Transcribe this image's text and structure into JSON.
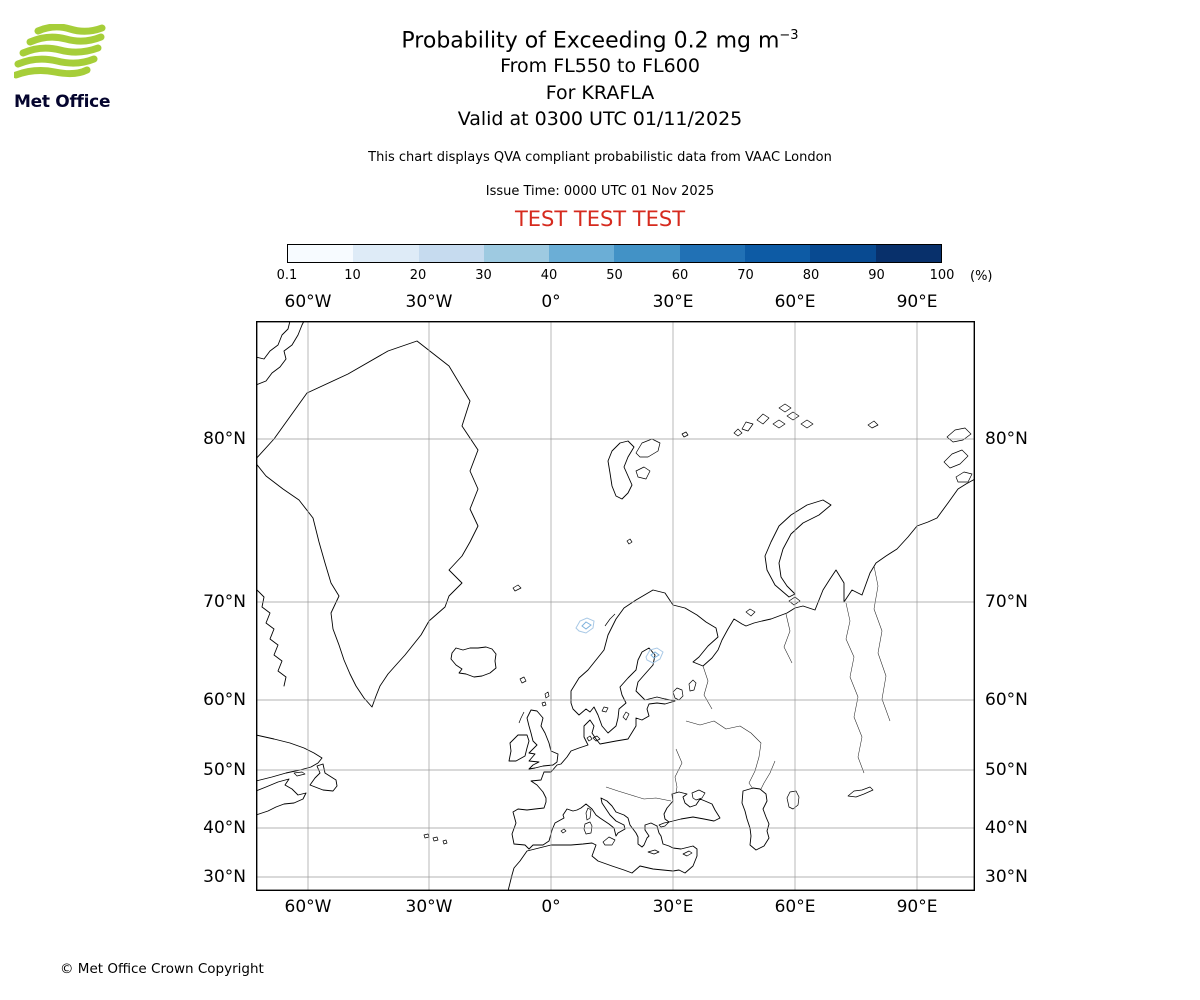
{
  "logo": {
    "text": "Met Office"
  },
  "header": {
    "title_main": "Probability of Exceeding 0.2 mg m",
    "title_sup": "−3",
    "subtitle_fl": "From FL550 to FL600",
    "subtitle_for": "For KRAFLA",
    "subtitle_valid": "Valid at 0300 UTC 01/11/2025",
    "qva_note": "This chart displays QVA compliant probabilistic data from VAAC London",
    "issue_time": "Issue Time: 0000 UTC 01 Nov 2025",
    "test_banner": "TEST TEST TEST"
  },
  "colorbar": {
    "ticks": [
      "0.1",
      "10",
      "20",
      "30",
      "40",
      "50",
      "60",
      "70",
      "80",
      "90",
      "100"
    ],
    "unit": "(%)",
    "colors": [
      "#f7fbff",
      "#deebf7",
      "#c6dbef",
      "#9ecae1",
      "#6baed6",
      "#4292c6",
      "#2171b5",
      "#0d5ba5",
      "#084a91",
      "#08306b"
    ]
  },
  "map": {
    "lon_labels": [
      "60°W",
      "30°W",
      "0°",
      "30°E",
      "60°E",
      "90°E"
    ],
    "lat_labels": [
      "80°N",
      "70°N",
      "60°N",
      "50°N",
      "40°N",
      "30°N"
    ]
  },
  "colors": {
    "test_red": "#d62a1e",
    "logo_green": "#a6ce39"
  },
  "footer": {
    "copyright": "© Met Office Crown Copyright"
  },
  "chart_data": {
    "type": "map",
    "title": "Probability of Exceeding 0.2 mg m−3",
    "layer": "From FL550 to FL600",
    "volcano": "For KRAFLA",
    "valid_time": "Valid at 0300 UTC 01/11/2025",
    "issue_time": "0000 UTC 01 Nov 2025",
    "legend_percent_bounds": [
      0.1,
      10,
      20,
      30,
      40,
      50,
      60,
      70,
      80,
      90,
      100
    ],
    "legend_unit": "(%)",
    "lon_gridline_labels": [
      "60°W",
      "30°W",
      "0°",
      "30°E",
      "60°E",
      "90°E"
    ],
    "lat_gridline_labels": [
      "80°N",
      "70°N",
      "60°N",
      "50°N",
      "40°N",
      "30°N"
    ]
  }
}
